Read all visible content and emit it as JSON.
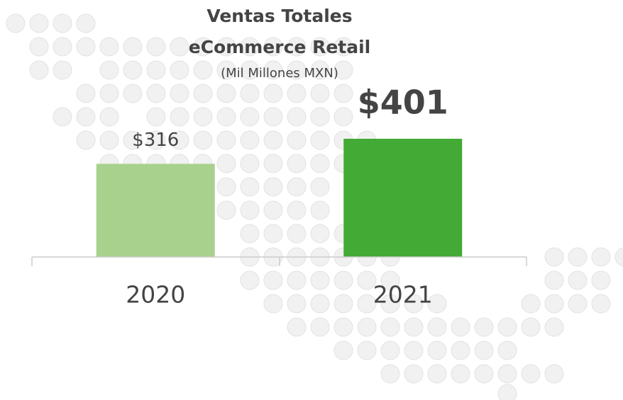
{
  "chart_data": {
    "type": "bar",
    "title": "Ventas Totales",
    "subtitle_line": "eCommerce Retail",
    "subtitle": "(Mil Millones MXN)",
    "categories": [
      "2020",
      "2021"
    ],
    "values": [
      316,
      401
    ],
    "value_labels": [
      "$316",
      "$401"
    ],
    "colors": [
      "#a9d18e",
      "#43aa35"
    ]
  }
}
